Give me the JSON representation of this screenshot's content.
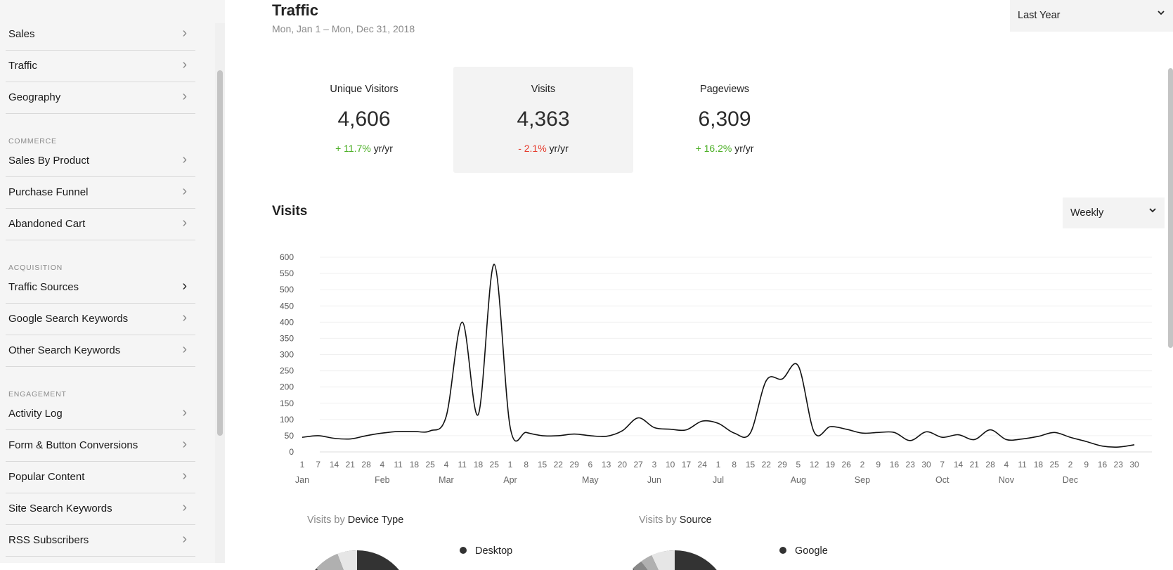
{
  "sidebar": {
    "items": [
      {
        "label": "Sales"
      },
      {
        "label": "Traffic"
      },
      {
        "label": "Geography"
      },
      {
        "label": "Sales By Product"
      },
      {
        "label": "Purchase Funnel"
      },
      {
        "label": "Abandoned Cart"
      },
      {
        "label": "Traffic Sources"
      },
      {
        "label": "Google Search Keywords"
      },
      {
        "label": "Other Search Keywords"
      },
      {
        "label": "Activity Log"
      },
      {
        "label": "Form & Button Conversions"
      },
      {
        "label": "Popular Content"
      },
      {
        "label": "Site Search Keywords"
      },
      {
        "label": "RSS Subscribers"
      }
    ],
    "sections": {
      "commerce": "COMMERCE",
      "acquisition": "ACQUISITION",
      "engagement": "ENGAGEMENT"
    },
    "chevron_icon": "chevron-right-icon"
  },
  "header": {
    "title": "Traffic",
    "date_range": "Mon, Jan 1 – Mon, Dec 31, 2018",
    "period_select": "Last Year"
  },
  "metrics": [
    {
      "label": "Unique Visitors",
      "value": "4,606",
      "delta": "+ 11.7%",
      "suffix": " yr/yr",
      "trend": "up"
    },
    {
      "label": "Visits",
      "value": "4,363",
      "delta": "- 2.1%",
      "suffix": " yr/yr",
      "trend": "down",
      "selected": true
    },
    {
      "label": "Pageviews",
      "value": "6,309",
      "delta": "+ 16.2%",
      "suffix": " yr/yr",
      "trend": "up"
    }
  ],
  "colors": {
    "positive": "#4caf26",
    "negative": "#e53b2c",
    "line": "#111111",
    "sidebar_bg": "#f5f5f5"
  },
  "visits_section": {
    "title": "Visits",
    "interval_select": "Weekly"
  },
  "chart_data": {
    "type": "line",
    "title": "",
    "ylim": [
      0,
      600
    ],
    "yticks": [
      0,
      50,
      100,
      150,
      200,
      250,
      300,
      350,
      400,
      450,
      500,
      550,
      600
    ],
    "grid": true,
    "x_tick_labels": [
      "1",
      "7",
      "14",
      "21",
      "28",
      "4",
      "11",
      "18",
      "25",
      "4",
      "11",
      "18",
      "25",
      "1",
      "8",
      "15",
      "22",
      "29",
      "6",
      "13",
      "20",
      "27",
      "3",
      "10",
      "17",
      "24",
      "1",
      "8",
      "15",
      "22",
      "29",
      "5",
      "12",
      "19",
      "26",
      "2",
      "9",
      "16",
      "23",
      "30",
      "7",
      "14",
      "21",
      "28",
      "4",
      "11",
      "18",
      "25",
      "2",
      "9",
      "16",
      "23",
      "30"
    ],
    "month_labels": [
      {
        "label": "Jan",
        "tick_index": 0
      },
      {
        "label": "Feb",
        "tick_index": 5
      },
      {
        "label": "Mar",
        "tick_index": 9
      },
      {
        "label": "Apr",
        "tick_index": 13
      },
      {
        "label": "May",
        "tick_index": 18
      },
      {
        "label": "Jun",
        "tick_index": 22
      },
      {
        "label": "Jul",
        "tick_index": 26
      },
      {
        "label": "Aug",
        "tick_index": 31
      },
      {
        "label": "Sep",
        "tick_index": 35
      },
      {
        "label": "Oct",
        "tick_index": 40
      },
      {
        "label": "Nov",
        "tick_index": 44
      },
      {
        "label": "Dec",
        "tick_index": 48
      }
    ],
    "series": [
      {
        "values": [
          45,
          50,
          42,
          40,
          50,
          58,
          63,
          63,
          65,
          110,
          400,
          115,
          578,
          75,
          60,
          50,
          50,
          55,
          50,
          48,
          65,
          105,
          75,
          70,
          68,
          95,
          88,
          58,
          58,
          220,
          225,
          265,
          60,
          78,
          70,
          58,
          60,
          60,
          35,
          62,
          45,
          53,
          38,
          68,
          38,
          40,
          48,
          60,
          45,
          32,
          18,
          15,
          22
        ]
      }
    ]
  },
  "breakdowns": {
    "device": {
      "prefix": "Visits by",
      "title": "Device Type",
      "legend": [
        {
          "label": "Desktop",
          "color": "#333333"
        }
      ]
    },
    "source": {
      "prefix": "Visits by",
      "title": "Source",
      "legend": [
        {
          "label": "Google",
          "color": "#333333"
        }
      ]
    }
  }
}
